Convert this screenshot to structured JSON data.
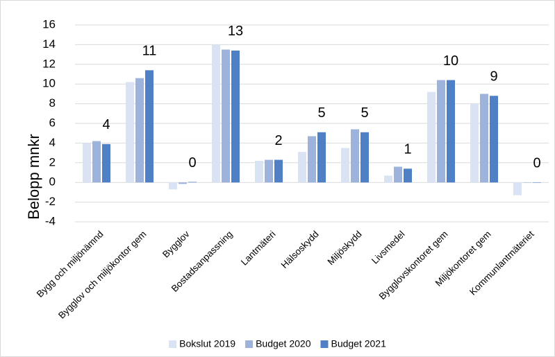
{
  "chart_data": {
    "type": "bar",
    "y_label": "Belopp mnkr",
    "categories": [
      "Bygg och miljönämnd",
      "Bygglov och miljökontor gem",
      "Bygglov",
      "Bostadsanpassning",
      "Lantmäteri",
      "Hälsoskydd",
      "Miljöskydd",
      "Livsmedel",
      "Bygglovskontoret gem",
      "Miljökontoret gem",
      "Kommunlantmäteriet"
    ],
    "series": [
      {
        "name": "Bokslut 2019",
        "color": "#dae3f3",
        "values": [
          4.0,
          10.2,
          -0.7,
          14.0,
          2.2,
          3.1,
          3.5,
          0.7,
          9.2,
          8.0,
          -1.3
        ]
      },
      {
        "name": "Budget 2020",
        "color": "#9db3dc",
        "values": [
          4.2,
          10.6,
          -0.15,
          13.5,
          2.3,
          4.7,
          5.4,
          1.6,
          10.4,
          9.0,
          0
        ]
      },
      {
        "name": "Budget 2021",
        "color": "#4f7fc4",
        "values": [
          3.9,
          11.4,
          0.05,
          13.4,
          2.3,
          5.1,
          5.1,
          1.4,
          10.4,
          8.8,
          0
        ],
        "value_labels": [
          "4",
          "11",
          "0",
          "13",
          "2",
          "5",
          "5",
          "1",
          "10",
          "9",
          "0"
        ]
      }
    ],
    "ylim": [
      -4,
      16
    ],
    "yticks": [
      -4,
      -2,
      0,
      2,
      4,
      6,
      8,
      10,
      12,
      14,
      16
    ],
    "negative_tick_color": "#ff0000",
    "grid": true,
    "legend": "bottom"
  }
}
